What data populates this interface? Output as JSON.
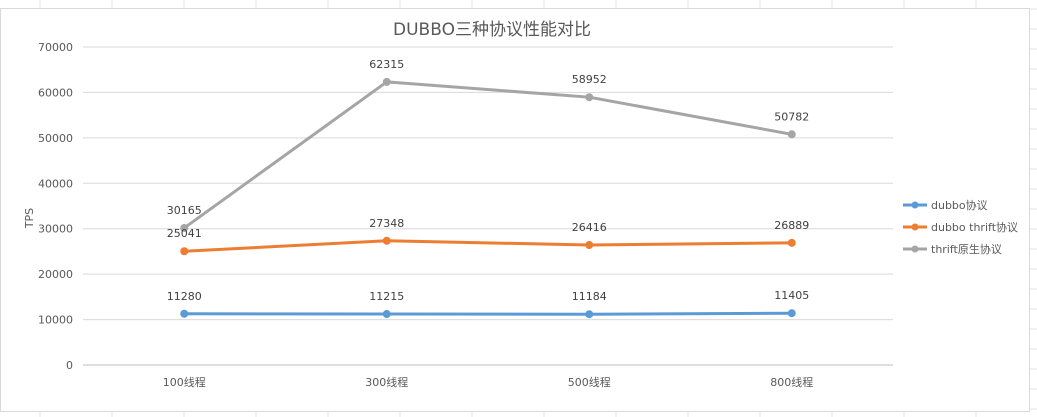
{
  "chart_data": {
    "type": "line",
    "title": "DUBBO三种协议性能对比",
    "xlabel": "",
    "ylabel": "TPS",
    "categories": [
      "100线程",
      "300线程",
      "500线程",
      "800线程"
    ],
    "ylim": [
      0,
      70000
    ],
    "yticks": [
      0,
      10000,
      20000,
      30000,
      40000,
      50000,
      60000,
      70000
    ],
    "ytick_labels": [
      "0",
      "10000",
      "20000",
      "30000",
      "40000",
      "50000",
      "60000",
      "70000"
    ],
    "grid": true,
    "legend_position": "right",
    "series": [
      {
        "name": "dubbo协议",
        "color": "#5b9bd5",
        "values": [
          11280,
          11215,
          11184,
          11405
        ]
      },
      {
        "name": "dubbo thrift协议",
        "color": "#ed7d31",
        "values": [
          25041,
          27348,
          26416,
          26889
        ]
      },
      {
        "name": "thrift原生协议",
        "color": "#a5a5a5",
        "values": [
          30165,
          62315,
          58952,
          50782
        ]
      }
    ]
  }
}
